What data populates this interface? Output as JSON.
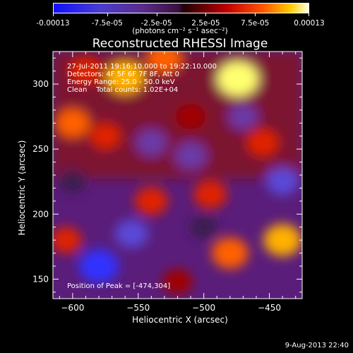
{
  "colorbar": {
    "tick_labels": [
      "-0.00013",
      "-7.5e-05",
      "-2.5e-05",
      "2.5e-05",
      "7.5e-05",
      "0.00013"
    ],
    "units": "(photons cm⁻² s⁻¹ asec⁻²)"
  },
  "annotations": {
    "time_range": "27-Jul-2011 19:16:10.000 to 19:22:10.000",
    "detectors": "Detectors: 4F 5F 6F 7F 8F, Att 0",
    "energy_range": "Energy Range: 25.0 - 50.0 keV",
    "clean_counts": "Clean    Total counts: 1.02E+04",
    "peak_position": "Position of Peak = [-474,304]"
  },
  "datestamp": "9-Aug-2013 22:40",
  "chart_data": {
    "type": "heatmap",
    "title": "Reconstructed RHESSI Image",
    "xlabel": "Heliocentric X (arcsec)",
    "ylabel": "Heliocentric Y (arcsec)",
    "xlim": [
      -615,
      -425
    ],
    "ylim": [
      135,
      325
    ],
    "x_ticks": [
      -600,
      -550,
      -500,
      -450
    ],
    "y_ticks": [
      150,
      200,
      250,
      300
    ],
    "colorbar_range": [
      -0.00013,
      0.00013
    ],
    "peak": [
      -474,
      304
    ],
    "features": [
      {
        "x": -474,
        "y": 304,
        "level": 1.0
      },
      {
        "x": -560,
        "y": 305,
        "level": 0.85
      },
      {
        "x": -440,
        "y": 180,
        "level": 0.8
      },
      {
        "x": -480,
        "y": 170,
        "level": 0.75
      },
      {
        "x": -530,
        "y": 320,
        "level": 0.7
      },
      {
        "x": -600,
        "y": 270,
        "level": 0.65
      },
      {
        "x": -590,
        "y": 310,
        "level": 0.55
      },
      {
        "x": -540,
        "y": 210,
        "level": 0.6
      },
      {
        "x": -495,
        "y": 215,
        "level": 0.6
      },
      {
        "x": -455,
        "y": 255,
        "level": 0.55
      },
      {
        "x": -605,
        "y": 180,
        "level": 0.5
      },
      {
        "x": -520,
        "y": 148,
        "level": 0.45
      },
      {
        "x": -575,
        "y": 260,
        "level": 0.5
      },
      {
        "x": -510,
        "y": 275,
        "level": 0.45
      },
      {
        "x": -580,
        "y": 160,
        "level": -0.9
      },
      {
        "x": -555,
        "y": 185,
        "level": -0.6
      },
      {
        "x": -440,
        "y": 225,
        "level": -0.55
      },
      {
        "x": -510,
        "y": 245,
        "level": -0.5
      },
      {
        "x": -540,
        "y": 255,
        "level": -0.45
      },
      {
        "x": -470,
        "y": 275,
        "level": -0.4
      },
      {
        "x": -600,
        "y": 225,
        "level": -0.35
      },
      {
        "x": -500,
        "y": 190,
        "level": -0.35
      }
    ]
  }
}
